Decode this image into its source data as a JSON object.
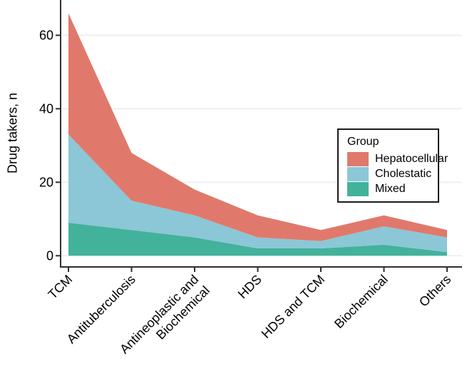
{
  "chart_data": {
    "type": "area",
    "stacked": true,
    "ylabel": "Drug takers, n",
    "categories": [
      "TCM",
      "Antituberculosis",
      "Antineoplastic and\nBiochemical",
      "HDS",
      "HDS and TCM",
      "Biochemical",
      "Others"
    ],
    "series": [
      {
        "name": "Mixed",
        "color": "#43B29B",
        "values": [
          9,
          7,
          5,
          2,
          2,
          3,
          1
        ]
      },
      {
        "name": "Cholestatic",
        "color": "#8BC7D7",
        "values": [
          24,
          8,
          6,
          3,
          2,
          5,
          4
        ]
      },
      {
        "name": "Hepatocellular",
        "color": "#E0796B",
        "values": [
          33,
          13,
          7,
          6,
          3,
          3,
          2
        ]
      }
    ],
    "cumulative_tops": {
      "TCM": [
        9,
        33,
        66
      ],
      "Antituberculosis": [
        7,
        15,
        28
      ],
      "Antineoplastic and Biochemical": [
        5,
        11,
        18
      ],
      "HDS": [
        2,
        5,
        11
      ],
      "HDS and TCM": [
        2,
        4,
        7
      ],
      "Biochemical": [
        3,
        8,
        11
      ],
      "Others": [
        1,
        5,
        7
      ]
    },
    "yticks": [
      0,
      20,
      40,
      60
    ],
    "ylim": [
      0,
      70
    ],
    "grid": true,
    "legend": {
      "title": "Group",
      "position": "right-middle",
      "display_order": [
        "Hepatocellular",
        "Cholestatic",
        "Mixed"
      ]
    },
    "colors": {
      "hepatocellular": "#E0796B",
      "cholestatic": "#8BC7D7",
      "mixed": "#43B29B",
      "gridline": "#E9F1F3",
      "axis": "#2F2F2F",
      "text": "#000000"
    }
  }
}
